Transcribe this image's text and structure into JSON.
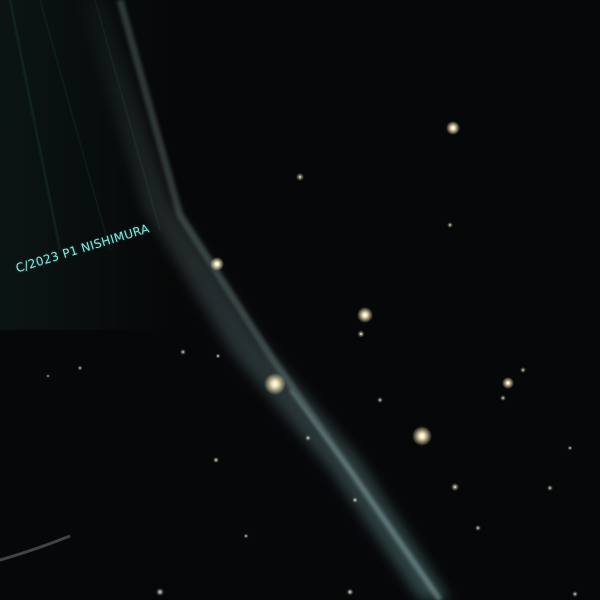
{
  "image": {
    "caption": "C/2023 P1 NISHIMURA",
    "colors": {
      "background": "#060708",
      "label": "#7fe8e2",
      "tail": "#9ec7c7",
      "stars": "#fff6d8"
    }
  }
}
